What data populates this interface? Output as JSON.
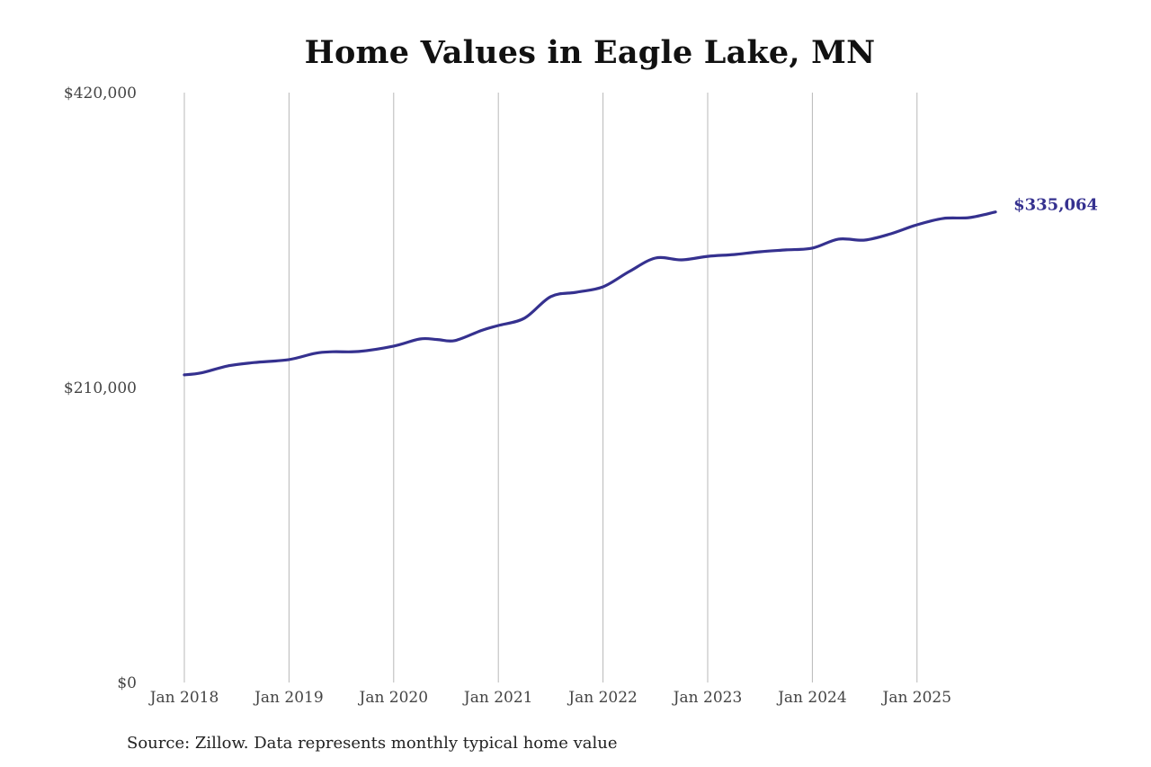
{
  "chart": {
    "title": "Home Values in Eagle Lake, MN",
    "source_note": "Source: Zillow. Data represents monthly typical home value",
    "end_label": "$335,064",
    "line_color": "#35318f",
    "gridline_color": "#b8b8b8"
  },
  "chart_data": {
    "type": "line",
    "title": "Home Values in Eagle Lake, MN",
    "xlabel": "",
    "ylabel": "",
    "ylim": [
      0,
      420000
    ],
    "y_ticks": [
      0,
      210000,
      420000
    ],
    "y_tick_labels": [
      "$0",
      "$210,000",
      "$420,000"
    ],
    "x_tick_labels": [
      "Jan 2018",
      "Jan 2019",
      "Jan 2020",
      "Jan 2021",
      "Jan 2022",
      "Jan 2023",
      "Jan 2024",
      "Jan 2025"
    ],
    "grid": "vertical",
    "legend": "none",
    "annotations": [
      {
        "x": "2025-10",
        "text": "$335,064"
      }
    ],
    "series": [
      {
        "name": "Typical home value",
        "color": "#35318f",
        "x": [
          "2018-01",
          "2018-03",
          "2018-06",
          "2018-09",
          "2019-01",
          "2019-04",
          "2019-06",
          "2019-09",
          "2020-01",
          "2020-04",
          "2020-06",
          "2020-08",
          "2020-11",
          "2021-01",
          "2021-04",
          "2021-07",
          "2021-10",
          "2022-01",
          "2022-04",
          "2022-07",
          "2022-10",
          "2023-01",
          "2023-04",
          "2023-07",
          "2023-10",
          "2024-01",
          "2024-04",
          "2024-07",
          "2024-10",
          "2025-01",
          "2025-04",
          "2025-07",
          "2025-10"
        ],
        "values": [
          219000,
          220500,
          225400,
          227800,
          229900,
          234400,
          235500,
          235700,
          239500,
          244600,
          244200,
          243400,
          250500,
          254200,
          259400,
          274700,
          277900,
          281700,
          292600,
          302200,
          300900,
          303400,
          304700,
          306700,
          308000,
          309300,
          315700,
          315000,
          319500,
          325900,
          330400,
          331000,
          335064
        ]
      }
    ]
  },
  "axes": {
    "y_labels": [
      "$420,000",
      "$210,000",
      "$0"
    ],
    "x_labels": [
      "Jan 2018",
      "Jan 2019",
      "Jan 2020",
      "Jan 2021",
      "Jan 2022",
      "Jan 2023",
      "Jan 2024",
      "Jan 2025"
    ]
  }
}
